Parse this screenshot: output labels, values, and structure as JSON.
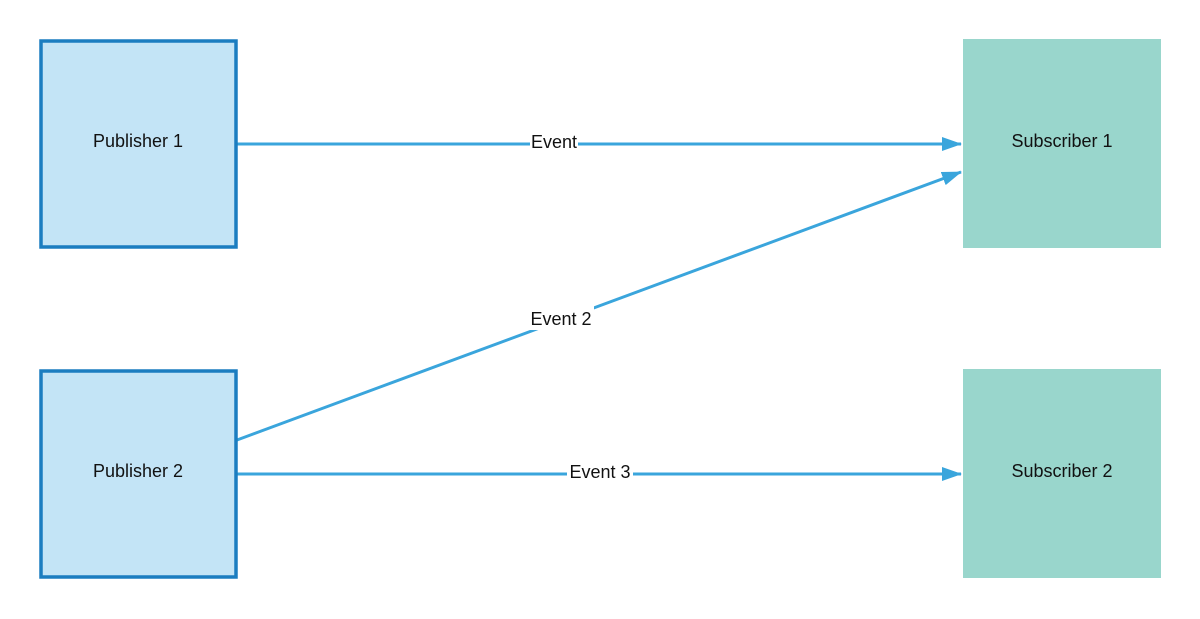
{
  "colors": {
    "publisher_fill": "#c3e4f6",
    "publisher_stroke": "#1b7dc0",
    "subscriber_fill": "#99d6cc",
    "edge": "#3aa5dc"
  },
  "nodes": {
    "publisher1": "Publisher 1",
    "publisher2": "Publisher 2",
    "subscriber1": "Subscriber 1",
    "subscriber2": "Subscriber 2"
  },
  "edges": {
    "e1": {
      "label": "Event",
      "from": "Publisher 1",
      "to": "Subscriber 1"
    },
    "e2": {
      "label": "Event 2",
      "from": "Publisher 2",
      "to": "Subscriber 1"
    },
    "e3": {
      "label": "Event 3",
      "from": "Publisher 2",
      "to": "Subscriber 2"
    }
  }
}
